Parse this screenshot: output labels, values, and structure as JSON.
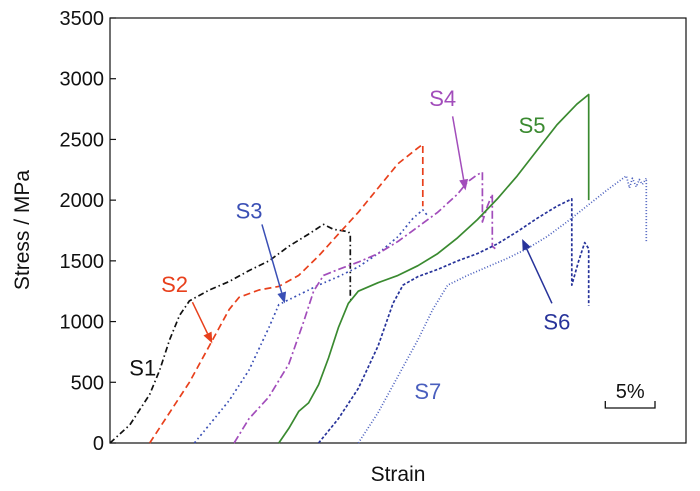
{
  "chart_data": {
    "type": "line",
    "title": "",
    "xlabel": "Strain",
    "ylabel": "Stress / MPa",
    "ylim": [
      0,
      3500
    ],
    "yticks": [
      0,
      500,
      1000,
      1500,
      2000,
      2500,
      3000,
      3500
    ],
    "xlim": [
      0,
      58
    ],
    "x_unit_note": "curves offset horizontally; scale bar = 5% strain",
    "scale_bar_label": "5%",
    "scale_bar_value": 5,
    "grid": false,
    "legend": "none (curves labelled directly)",
    "series": [
      {
        "name": "S1",
        "color": "#111111",
        "dash": "6 3 1.5 3",
        "label_at": [
          3.3,
          620
        ],
        "arrow": null,
        "points": [
          [
            0,
            0
          ],
          [
            2,
            150
          ],
          [
            4,
            400
          ],
          [
            5,
            600
          ],
          [
            6,
            850
          ],
          [
            7,
            1050
          ],
          [
            8,
            1170
          ],
          [
            10,
            1260
          ],
          [
            12,
            1330
          ],
          [
            14,
            1420
          ],
          [
            16,
            1500
          ],
          [
            18,
            1620
          ],
          [
            20,
            1720
          ],
          [
            21.5,
            1800
          ],
          [
            22.5,
            1760
          ],
          [
            24,
            1740
          ],
          [
            24.2,
            1720
          ],
          [
            24.2,
            1200
          ],
          [
            24.3,
            1170
          ]
        ]
      },
      {
        "name": "S2",
        "color": "#e8401c",
        "dash": "7 4",
        "label_at": [
          6.5,
          1310
        ],
        "arrow": [
          [
            8.3,
            1160
          ],
          [
            10.3,
            820
          ]
        ],
        "points": [
          [
            4,
            0
          ],
          [
            6,
            250
          ],
          [
            8,
            500
          ],
          [
            10,
            800
          ],
          [
            12,
            1100
          ],
          [
            13,
            1200
          ],
          [
            15,
            1260
          ],
          [
            17,
            1290
          ],
          [
            19,
            1380
          ],
          [
            21,
            1540
          ],
          [
            23,
            1720
          ],
          [
            25,
            1900
          ],
          [
            27,
            2100
          ],
          [
            29,
            2300
          ],
          [
            31,
            2430
          ],
          [
            31.5,
            2460
          ],
          [
            31.5,
            1950
          ]
        ]
      },
      {
        "name": "S3",
        "color": "#3a4fb5",
        "dash": "2 3 1.5 3",
        "label_at": [
          14,
          1915
        ],
        "arrow": [
          [
            15.3,
            1800
          ],
          [
            17.6,
            1150
          ]
        ],
        "points": [
          [
            8.5,
            0
          ],
          [
            10,
            150
          ],
          [
            12,
            350
          ],
          [
            14,
            600
          ],
          [
            16,
            950
          ],
          [
            17,
            1140
          ],
          [
            19,
            1220
          ],
          [
            21,
            1300
          ],
          [
            23,
            1370
          ],
          [
            25,
            1450
          ],
          [
            27,
            1560
          ],
          [
            29,
            1700
          ],
          [
            30.5,
            1850
          ],
          [
            31.5,
            1920
          ],
          [
            32,
            1870
          ]
        ]
      },
      {
        "name": "S4",
        "color": "#a24dbb",
        "dash": "8 3 2 3",
        "label_at": [
          33.5,
          2840
        ],
        "arrow": [
          [
            34.5,
            2690
          ],
          [
            35.8,
            2080
          ]
        ],
        "points": [
          [
            12.5,
            0
          ],
          [
            14,
            200
          ],
          [
            16,
            380
          ],
          [
            18,
            650
          ],
          [
            19.5,
            1000
          ],
          [
            20.5,
            1250
          ],
          [
            21.5,
            1380
          ],
          [
            23,
            1430
          ],
          [
            25,
            1490
          ],
          [
            27,
            1560
          ],
          [
            29,
            1660
          ],
          [
            31,
            1780
          ],
          [
            33,
            1900
          ],
          [
            35,
            2050
          ],
          [
            36,
            2150
          ],
          [
            37,
            2210
          ],
          [
            37.5,
            2230
          ],
          [
            37.5,
            1820
          ],
          [
            38,
            1950
          ],
          [
            38.5,
            2050
          ],
          [
            38.5,
            1620
          ],
          [
            38.8,
            1600
          ]
        ]
      },
      {
        "name": "S5",
        "color": "#3a8a30",
        "dash": "",
        "label_at": [
          42.5,
          2620
        ],
        "arrow": null,
        "points": [
          [
            17,
            0
          ],
          [
            18,
            120
          ],
          [
            19,
            260
          ],
          [
            20,
            330
          ],
          [
            21,
            480
          ],
          [
            22,
            700
          ],
          [
            23,
            950
          ],
          [
            24,
            1150
          ],
          [
            25,
            1250
          ],
          [
            27,
            1320
          ],
          [
            29,
            1380
          ],
          [
            31,
            1460
          ],
          [
            33,
            1560
          ],
          [
            35,
            1690
          ],
          [
            37,
            1840
          ],
          [
            39,
            2010
          ],
          [
            41,
            2200
          ],
          [
            43,
            2410
          ],
          [
            45,
            2620
          ],
          [
            47,
            2790
          ],
          [
            48.2,
            2870
          ],
          [
            48.2,
            2000
          ]
        ]
      },
      {
        "name": "S6",
        "color": "#27339a",
        "dash": "3 2",
        "label_at": [
          45,
          1000
        ],
        "arrow": [
          [
            44.5,
            1150
          ],
          [
            41.5,
            1680
          ]
        ],
        "points": [
          [
            21,
            0
          ],
          [
            23,
            200
          ],
          [
            25,
            450
          ],
          [
            27,
            800
          ],
          [
            28.5,
            1150
          ],
          [
            29.5,
            1300
          ],
          [
            31,
            1370
          ],
          [
            33,
            1430
          ],
          [
            35,
            1500
          ],
          [
            37,
            1560
          ],
          [
            39,
            1640
          ],
          [
            41,
            1740
          ],
          [
            43,
            1850
          ],
          [
            45,
            1950
          ],
          [
            46,
            1990
          ],
          [
            46.5,
            2010
          ],
          [
            46.5,
            1300
          ],
          [
            47.2,
            1500
          ],
          [
            47.8,
            1650
          ],
          [
            48.2,
            1600
          ],
          [
            48.2,
            1130
          ]
        ]
      },
      {
        "name": "S7",
        "color": "#4a5fbe",
        "dash": "1 2",
        "label_at": [
          32,
          430
        ],
        "arrow": null,
        "points": [
          [
            25,
            0
          ],
          [
            27,
            250
          ],
          [
            29,
            550
          ],
          [
            31,
            850
          ],
          [
            32.5,
            1100
          ],
          [
            34,
            1300
          ],
          [
            36,
            1380
          ],
          [
            38,
            1450
          ],
          [
            40,
            1520
          ],
          [
            42,
            1600
          ],
          [
            44,
            1700
          ],
          [
            46,
            1820
          ],
          [
            48,
            1950
          ],
          [
            50,
            2080
          ],
          [
            51.5,
            2170
          ],
          [
            52,
            2200
          ],
          [
            52.3,
            2100
          ],
          [
            52.6,
            2180
          ],
          [
            53,
            2110
          ],
          [
            53.3,
            2170
          ],
          [
            53.6,
            2130
          ],
          [
            54,
            2180
          ],
          [
            54,
            1650
          ]
        ]
      }
    ]
  }
}
